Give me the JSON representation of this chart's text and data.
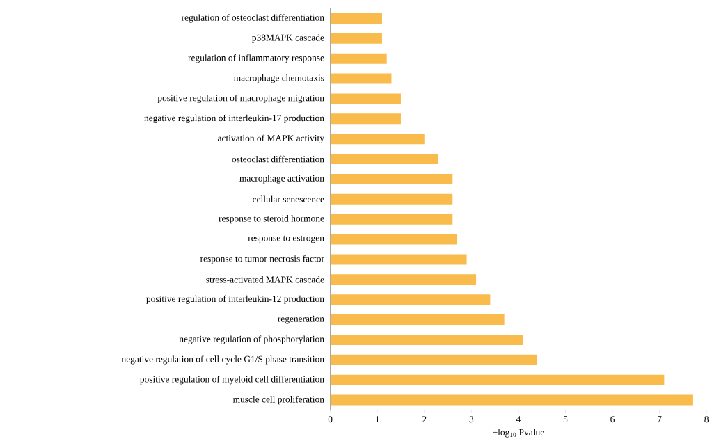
{
  "chart_data": {
    "type": "bar",
    "orientation": "horizontal",
    "xlabel": "−log$_{10}$ Pvalue",
    "color": "#f9bb4b",
    "categories": [
      "regulation of osteoclast differentiation",
      "p38MAPK cascade",
      "regulation of inflammatory response",
      "macrophage chemotaxis",
      "positive regulation of macrophage migration",
      "negative regulation of interleukin-17 production",
      "activation of MAPK activity",
      "osteoclast differentiation",
      "macrophage activation",
      "cellular senescence",
      "response to steroid hormone",
      "response to estrogen",
      "response to tumor necrosis factor",
      "stress-activated MAPK cascade",
      "positive regulation of interleukin-12 production",
      "regeneration",
      "negative regulation of phosphorylation",
      "negative regulation of cell cycle G1/S phase transition",
      "positive regulation of myeloid cell differentiation",
      "muscle cell proliferation"
    ],
    "values": [
      1.1,
      1.1,
      1.2,
      1.3,
      1.5,
      1.5,
      2.0,
      2.3,
      2.6,
      2.6,
      2.6,
      2.7,
      2.9,
      3.1,
      3.4,
      3.7,
      4.1,
      4.4,
      7.1,
      7.7
    ],
    "xlim": [
      0,
      8
    ],
    "xticks": [
      0,
      1,
      2,
      3,
      4,
      5,
      6,
      7,
      8
    ]
  }
}
